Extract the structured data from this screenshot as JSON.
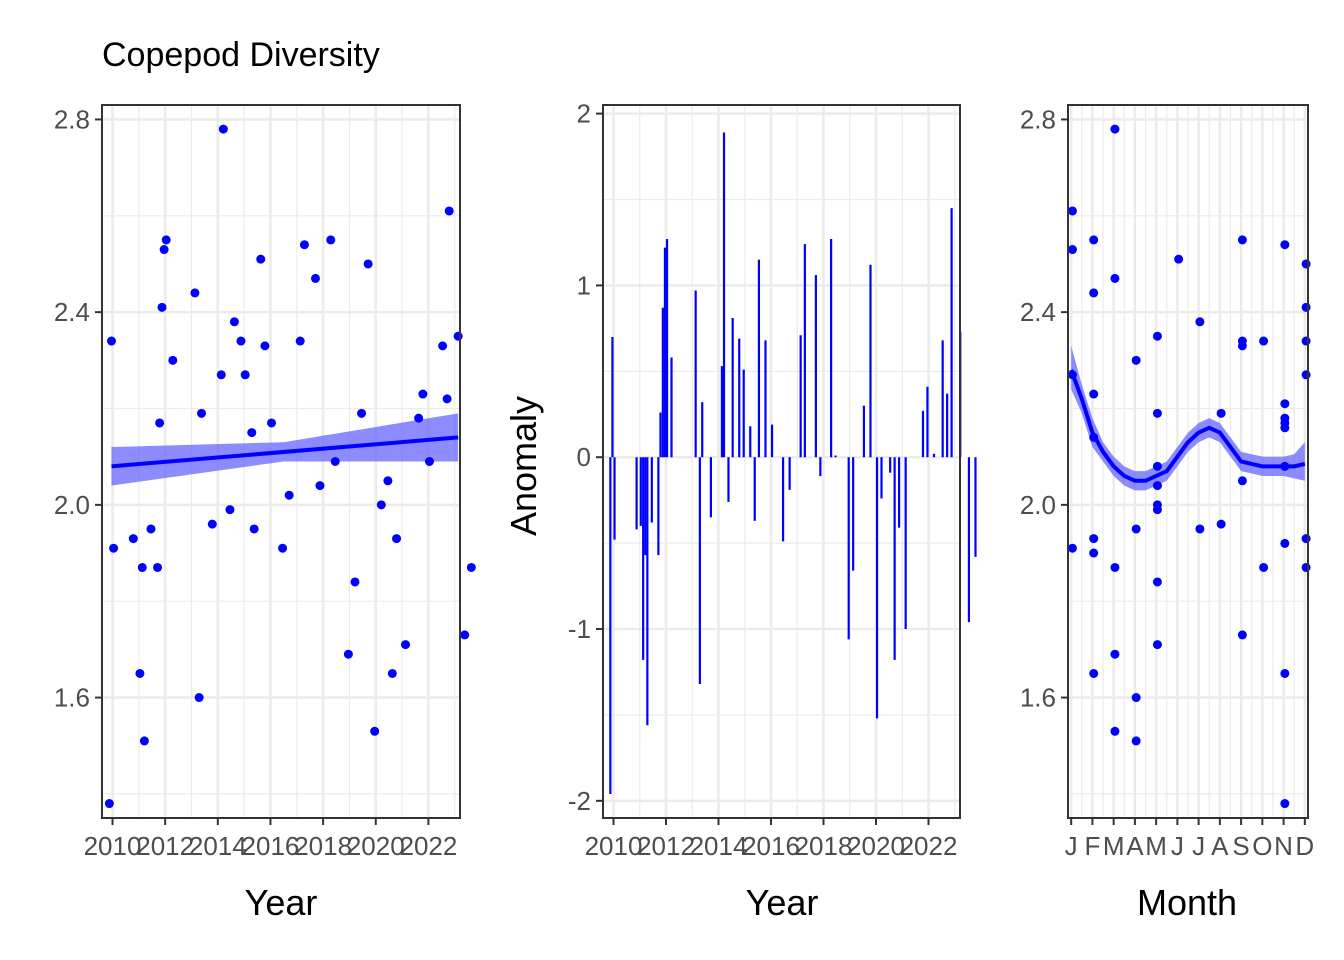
{
  "chart_data": [
    {
      "type": "scatter",
      "title": "Copepod Diversity",
      "xlabel": "Year",
      "ylabel": "",
      "xlim": [
        2009.6,
        2023.2
      ],
      "ylim": [
        1.35,
        2.83
      ],
      "x_ticks": [
        2010,
        2012,
        2014,
        2016,
        2018,
        2020,
        2022
      ],
      "x_tick_labels": [
        "2010",
        "2012",
        "2014",
        "2016",
        "2018",
        "2020",
        "2022"
      ],
      "y_ticks": [
        1.6,
        2.0,
        2.4,
        2.8
      ],
      "y_tick_labels": [
        "1.6",
        "2.0",
        "2.4",
        "2.8"
      ],
      "grid": true,
      "point_color": "#0000ff",
      "smooth_color": "#0000ff",
      "ribbon_color": "#6666ff",
      "points": [
        [
          2009.88,
          1.38
        ],
        [
          2009.96,
          2.34
        ],
        [
          2010.04,
          1.91
        ],
        [
          2010.79,
          1.93
        ],
        [
          2011.04,
          1.65
        ],
        [
          2011.13,
          1.87
        ],
        [
          2011.21,
          1.51
        ],
        [
          2011.46,
          1.95
        ],
        [
          2011.79,
          2.17
        ],
        [
          2011.71,
          1.87
        ],
        [
          2011.88,
          2.41
        ],
        [
          2011.96,
          2.53
        ],
        [
          2012.04,
          2.55
        ],
        [
          2012.29,
          2.3
        ],
        [
          2013.13,
          2.44
        ],
        [
          2013.29,
          1.6
        ],
        [
          2013.38,
          2.19
        ],
        [
          2013.79,
          1.96
        ],
        [
          2014.13,
          2.27
        ],
        [
          2014.21,
          2.78
        ],
        [
          2014.46,
          1.99
        ],
        [
          2014.63,
          2.38
        ],
        [
          2014.88,
          2.34
        ],
        [
          2015.04,
          2.27
        ],
        [
          2015.29,
          2.15
        ],
        [
          2015.38,
          1.95
        ],
        [
          2015.63,
          2.51
        ],
        [
          2015.79,
          2.33
        ],
        [
          2016.04,
          2.17
        ],
        [
          2016.46,
          1.91
        ],
        [
          2016.71,
          2.02
        ],
        [
          2017.13,
          2.34
        ],
        [
          2017.29,
          2.54
        ],
        [
          2017.71,
          2.47
        ],
        [
          2017.88,
          2.04
        ],
        [
          2018.29,
          2.55
        ],
        [
          2018.46,
          2.09
        ],
        [
          2018.96,
          1.69
        ],
        [
          2019.21,
          1.84
        ],
        [
          2019.46,
          2.19
        ],
        [
          2019.71,
          2.5
        ],
        [
          2019.96,
          1.53
        ],
        [
          2020.21,
          2.0
        ],
        [
          2020.46,
          2.05
        ],
        [
          2020.63,
          1.65
        ],
        [
          2020.79,
          1.93
        ],
        [
          2021.13,
          1.71
        ],
        [
          2021.63,
          2.18
        ],
        [
          2021.79,
          2.23
        ],
        [
          2022.04,
          2.09
        ],
        [
          2022.54,
          2.33
        ],
        [
          2022.71,
          2.22
        ],
        [
          2022.79,
          2.61
        ],
        [
          2023.13,
          2.35
        ],
        [
          2023.38,
          1.73
        ],
        [
          2023.63,
          1.87
        ]
      ],
      "fit_line": [
        [
          2009.96,
          2.08
        ],
        [
          2023.13,
          2.14
        ]
      ],
      "ribbon_upper": [
        [
          2009.96,
          2.12
        ],
        [
          2016.5,
          2.13
        ],
        [
          2023.13,
          2.19
        ]
      ],
      "ribbon_lower": [
        [
          2009.96,
          2.04
        ],
        [
          2016.5,
          2.09
        ],
        [
          2023.13,
          2.09
        ]
      ]
    },
    {
      "type": "bar",
      "title": "",
      "xlabel": "Year",
      "ylabel": "Anomaly",
      "xlim": [
        2009.6,
        2023.2
      ],
      "ylim": [
        -2.1,
        2.05
      ],
      "x_ticks": [
        2010,
        2012,
        2014,
        2016,
        2018,
        2020,
        2022
      ],
      "x_tick_labels": [
        "2010",
        "2012",
        "2014",
        "2016",
        "2018",
        "2020",
        "2022"
      ],
      "y_ticks": [
        -2,
        -1,
        0,
        1,
        2
      ],
      "y_tick_labels": [
        "-2",
        "-1",
        "0",
        "1",
        "2"
      ],
      "grid": true,
      "bar_color": "#0000ff",
      "bars": [
        [
          2009.88,
          -1.96
        ],
        [
          2009.96,
          0.7
        ],
        [
          2010.04,
          -0.48
        ],
        [
          2010.88,
          -0.42
        ],
        [
          2011.04,
          -0.4
        ],
        [
          2011.13,
          -1.18
        ],
        [
          2011.21,
          -0.57
        ],
        [
          2011.29,
          -1.56
        ],
        [
          2011.46,
          -0.38
        ],
        [
          2011.71,
          -0.57
        ],
        [
          2011.79,
          0.26
        ],
        [
          2011.88,
          0.87
        ],
        [
          2011.96,
          1.22
        ],
        [
          2012.04,
          1.27
        ],
        [
          2012.21,
          0.58
        ],
        [
          2013.13,
          0.97
        ],
        [
          2013.29,
          -1.32
        ],
        [
          2013.38,
          0.32
        ],
        [
          2013.71,
          -0.35
        ],
        [
          2014.13,
          0.53
        ],
        [
          2014.21,
          1.89
        ],
        [
          2014.38,
          -0.26
        ],
        [
          2014.54,
          0.81
        ],
        [
          2014.79,
          0.69
        ],
        [
          2014.96,
          0.51
        ],
        [
          2015.21,
          0.18
        ],
        [
          2015.38,
          -0.37
        ],
        [
          2015.54,
          1.15
        ],
        [
          2015.79,
          0.68
        ],
        [
          2016.04,
          0.19
        ],
        [
          2016.46,
          -0.49
        ],
        [
          2016.71,
          -0.19
        ],
        [
          2017.13,
          0.71
        ],
        [
          2017.29,
          1.24
        ],
        [
          2017.71,
          1.06
        ],
        [
          2017.88,
          -0.11
        ],
        [
          2018.29,
          1.27
        ],
        [
          2018.46,
          0.01
        ],
        [
          2018.96,
          -1.06
        ],
        [
          2019.13,
          -0.66
        ],
        [
          2019.54,
          0.3
        ],
        [
          2019.79,
          1.12
        ],
        [
          2020.04,
          -1.52
        ],
        [
          2020.21,
          -0.24
        ],
        [
          2020.54,
          -0.09
        ],
        [
          2020.71,
          -1.18
        ],
        [
          2020.88,
          -0.41
        ],
        [
          2021.13,
          -1.0
        ],
        [
          2021.79,
          0.27
        ],
        [
          2021.96,
          0.41
        ],
        [
          2022.21,
          0.02
        ],
        [
          2022.54,
          0.68
        ],
        [
          2022.71,
          0.37
        ],
        [
          2022.88,
          1.45
        ],
        [
          2023.21,
          0.73
        ],
        [
          2023.54,
          -0.96
        ],
        [
          2023.79,
          -0.58
        ]
      ]
    },
    {
      "type": "scatter",
      "title": "",
      "xlabel": "Month",
      "ylabel": "",
      "xlim": [
        0.85,
        12.15
      ],
      "ylim": [
        1.35,
        2.83
      ],
      "x_ticks": [
        1,
        2,
        3,
        4,
        5,
        6,
        7,
        8,
        9,
        10,
        11,
        12
      ],
      "x_tick_labels": [
        "J",
        "F",
        "M",
        "A",
        "M",
        "J",
        "J",
        "A",
        "S",
        "O",
        "N",
        "D"
      ],
      "y_ticks": [
        1.6,
        2.0,
        2.4,
        2.8
      ],
      "y_tick_labels": [
        "1.6",
        "2.0",
        "2.4",
        "2.8"
      ],
      "grid": true,
      "point_color": "#0000ff",
      "smooth_color": "#0000ff",
      "ribbon_color": "#6666ff",
      "points": [
        [
          1.06,
          2.61
        ],
        [
          1.06,
          2.53
        ],
        [
          1.06,
          2.27
        ],
        [
          1.06,
          1.91
        ],
        [
          2.06,
          2.55
        ],
        [
          2.06,
          2.44
        ],
        [
          2.06,
          2.23
        ],
        [
          2.06,
          2.14
        ],
        [
          2.06,
          1.93
        ],
        [
          2.06,
          1.9
        ],
        [
          2.06,
          1.65
        ],
        [
          3.06,
          2.78
        ],
        [
          3.06,
          2.47
        ],
        [
          3.06,
          1.87
        ],
        [
          3.06,
          1.69
        ],
        [
          3.06,
          1.53
        ],
        [
          4.06,
          2.3
        ],
        [
          4.06,
          1.95
        ],
        [
          4.06,
          1.6
        ],
        [
          4.06,
          1.51
        ],
        [
          5.06,
          2.35
        ],
        [
          5.06,
          2.19
        ],
        [
          5.06,
          2.08
        ],
        [
          5.06,
          2.04
        ],
        [
          5.06,
          2.0
        ],
        [
          5.06,
          1.99
        ],
        [
          5.06,
          1.84
        ],
        [
          5.06,
          1.71
        ],
        [
          6.06,
          2.51
        ],
        [
          7.06,
          2.38
        ],
        [
          7.06,
          1.95
        ],
        [
          8.06,
          2.19
        ],
        [
          8.06,
          1.96
        ],
        [
          9.06,
          2.55
        ],
        [
          9.06,
          2.34
        ],
        [
          9.06,
          2.33
        ],
        [
          9.06,
          2.05
        ],
        [
          9.06,
          1.73
        ],
        [
          10.06,
          2.34
        ],
        [
          10.06,
          1.87
        ],
        [
          11.06,
          2.54
        ],
        [
          11.06,
          2.21
        ],
        [
          11.06,
          2.18
        ],
        [
          11.06,
          2.17
        ],
        [
          11.06,
          2.16
        ],
        [
          11.06,
          2.08
        ],
        [
          11.06,
          1.92
        ],
        [
          11.06,
          1.65
        ],
        [
          11.06,
          1.38
        ],
        [
          12.06,
          2.5
        ],
        [
          12.06,
          2.41
        ],
        [
          12.06,
          2.34
        ],
        [
          12.06,
          2.27
        ],
        [
          12.06,
          1.93
        ],
        [
          12.06,
          1.87
        ]
      ],
      "fit_line": [
        [
          1.0,
          2.28
        ],
        [
          1.5,
          2.22
        ],
        [
          2.0,
          2.15
        ],
        [
          2.5,
          2.11
        ],
        [
          3.0,
          2.08
        ],
        [
          3.5,
          2.06
        ],
        [
          4.0,
          2.05
        ],
        [
          4.5,
          2.05
        ],
        [
          5.0,
          2.06
        ],
        [
          5.5,
          2.07
        ],
        [
          6.0,
          2.1
        ],
        [
          6.5,
          2.13
        ],
        [
          7.0,
          2.15
        ],
        [
          7.5,
          2.16
        ],
        [
          8.0,
          2.15
        ],
        [
          8.5,
          2.12
        ],
        [
          9.0,
          2.09
        ],
        [
          9.5,
          2.085
        ],
        [
          10.0,
          2.08
        ],
        [
          10.5,
          2.08
        ],
        [
          11.0,
          2.08
        ],
        [
          11.5,
          2.08
        ],
        [
          12.0,
          2.085
        ]
      ],
      "ribbon_upper": [
        [
          1.0,
          2.33
        ],
        [
          1.5,
          2.25
        ],
        [
          2.0,
          2.18
        ],
        [
          2.5,
          2.13
        ],
        [
          3.0,
          2.1
        ],
        [
          3.5,
          2.08
        ],
        [
          4.0,
          2.07
        ],
        [
          4.5,
          2.07
        ],
        [
          5.0,
          2.08
        ],
        [
          5.5,
          2.09
        ],
        [
          6.0,
          2.12
        ],
        [
          6.5,
          2.15
        ],
        [
          7.0,
          2.17
        ],
        [
          7.5,
          2.18
        ],
        [
          8.0,
          2.17
        ],
        [
          8.5,
          2.14
        ],
        [
          9.0,
          2.11
        ],
        [
          9.5,
          2.105
        ],
        [
          10.0,
          2.1
        ],
        [
          10.5,
          2.1
        ],
        [
          11.0,
          2.1
        ],
        [
          11.5,
          2.105
        ],
        [
          12.0,
          2.13
        ]
      ],
      "ribbon_lower": [
        [
          1.0,
          2.24
        ],
        [
          1.5,
          2.19
        ],
        [
          2.0,
          2.12
        ],
        [
          2.5,
          2.09
        ],
        [
          3.0,
          2.06
        ],
        [
          3.5,
          2.04
        ],
        [
          4.0,
          2.03
        ],
        [
          4.5,
          2.03
        ],
        [
          5.0,
          2.04
        ],
        [
          5.5,
          2.05
        ],
        [
          6.0,
          2.08
        ],
        [
          6.5,
          2.11
        ],
        [
          7.0,
          2.13
        ],
        [
          7.5,
          2.14
        ],
        [
          8.0,
          2.13
        ],
        [
          8.5,
          2.1
        ],
        [
          9.0,
          2.07
        ],
        [
          9.5,
          2.065
        ],
        [
          10.0,
          2.06
        ],
        [
          10.5,
          2.06
        ],
        [
          11.0,
          2.06
        ],
        [
          11.5,
          2.055
        ],
        [
          12.0,
          2.05
        ]
      ]
    }
  ]
}
